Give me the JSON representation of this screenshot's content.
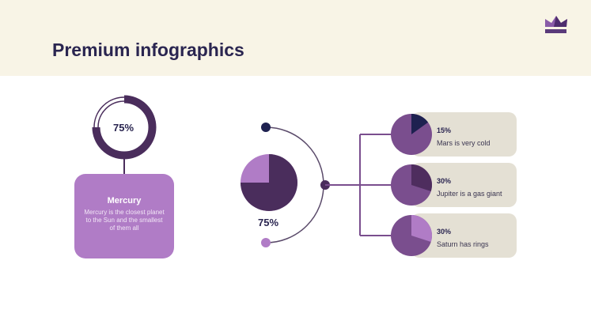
{
  "header": {
    "title": "Premium infographics",
    "logo_icon": "crown-icon"
  },
  "colors": {
    "dark": "#4a2d5c",
    "light": "#b07cc6",
    "mid": "#7a4e8e",
    "navy": "#1e2150",
    "card": "#e4e0d4"
  },
  "mercury": {
    "percent_label": "75%",
    "percent": 75,
    "name": "Mercury",
    "description": "Mercury is the closest planet to the Sun and the smallest of them all"
  },
  "main_pie": {
    "percent_label": "75%",
    "percent": 75
  },
  "items": [
    {
      "percent_label": "15%",
      "percent": 15,
      "text": "Mars is very cold",
      "slice_color": "#1e2150"
    },
    {
      "percent_label": "30%",
      "percent": 30,
      "text": "Jupiter is a gas giant",
      "slice_color": "#4e2d5e"
    },
    {
      "percent_label": "30%",
      "percent": 30,
      "text": "Saturn has rings",
      "slice_color": "#b07cc6"
    }
  ]
}
